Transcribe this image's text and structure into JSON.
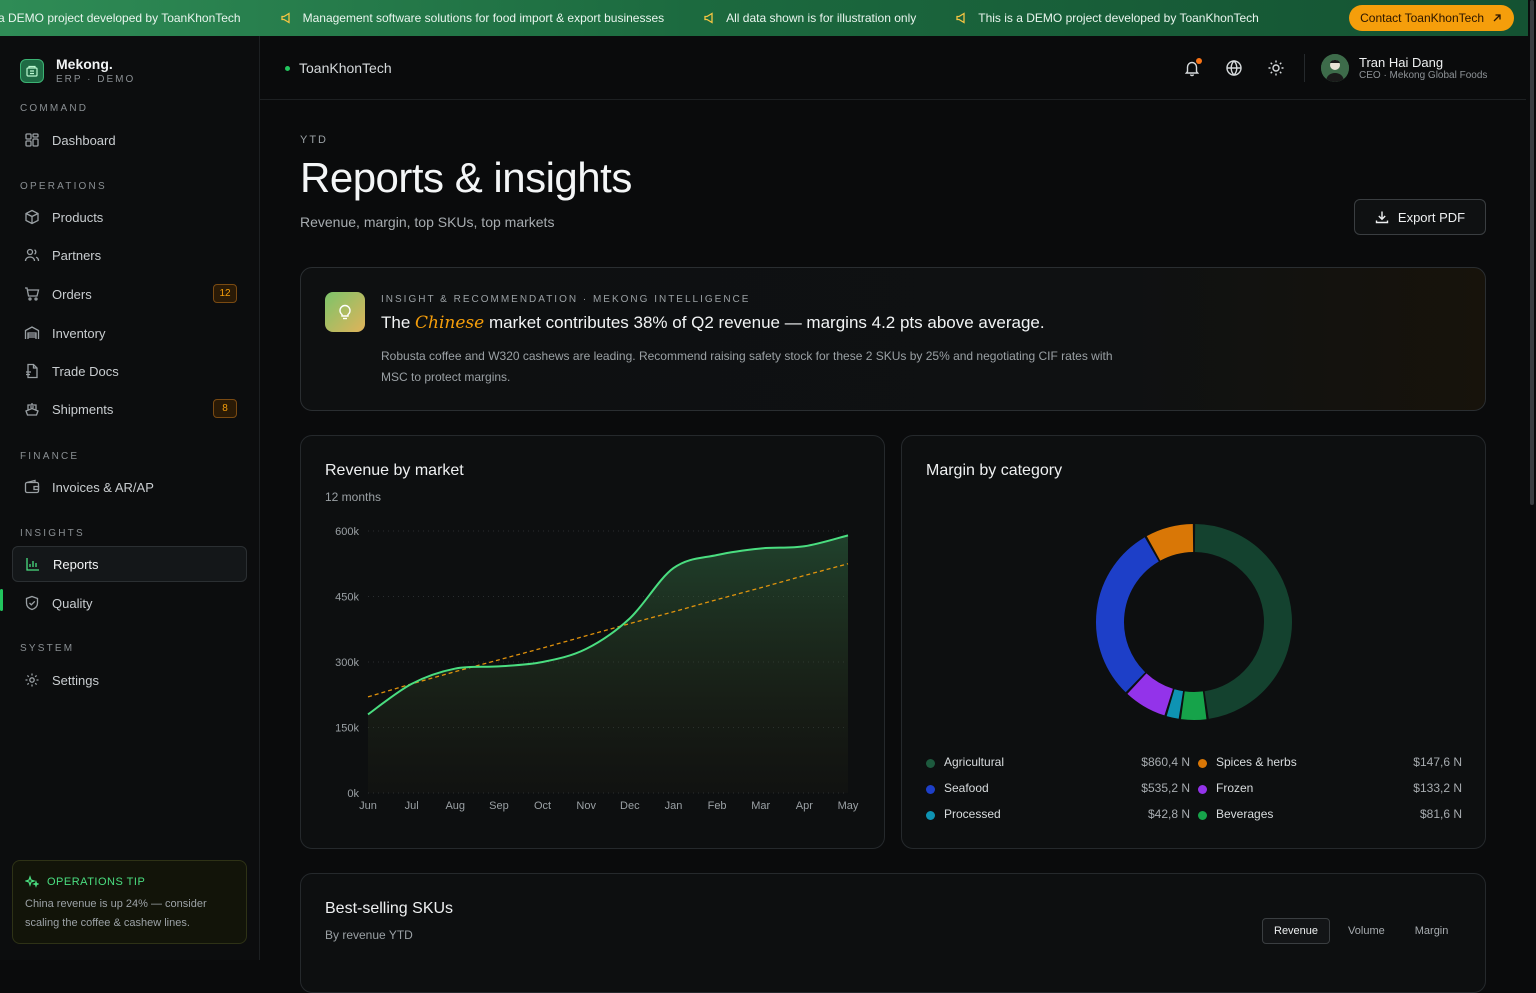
{
  "banner": {
    "messages": [
      "This is a DEMO project developed by ToanKhonTech",
      "Management software solutions for food import & export businesses",
      "All data shown is for illustration only",
      "This is a DEMO project developed by ToanKhonTech"
    ],
    "contact_label": "Contact ToanKhonTech"
  },
  "brand": {
    "name": "Mekong.",
    "sub": "ERP · DEMO"
  },
  "nav": {
    "command": "COMMAND",
    "operations": "OPERATIONS",
    "finance": "FINANCE",
    "insights": "INSIGHTS",
    "system": "SYSTEM",
    "dashboard": "Dashboard",
    "products": "Products",
    "partners": "Partners",
    "orders": "Orders",
    "orders_badge": "12",
    "inventory": "Inventory",
    "trade_docs": "Trade Docs",
    "shipments": "Shipments",
    "shipments_badge": "8",
    "invoices": "Invoices & AR/AP",
    "reports": "Reports",
    "quality": "Quality",
    "settings": "Settings"
  },
  "tip": {
    "title": "OPERATIONS TIP",
    "text": "China revenue is up 24% — consider scaling the coffee & cashew lines."
  },
  "topbar": {
    "breadcrumb": "ToanKhonTech",
    "user_name": "Tran Hai Dang",
    "user_role": "CEO · Mekong Global Foods"
  },
  "page": {
    "eyebrow": "YTD",
    "title": "Reports & insights",
    "subtitle": "Revenue, margin, top SKUs, top markets",
    "export_label": "Export PDF"
  },
  "insight": {
    "eyebrow": "INSIGHT & RECOMMENDATION · MEKONG INTELLIGENCE",
    "head_pre": "The ",
    "head_em": "Chinese",
    "head_post": " market contributes 38% of Q2 revenue — margins 4.2 pts above average.",
    "body": "Robusta coffee and W320 cashews are leading. Recommend raising safety stock for these 2 SKUs by 25% and negotiating CIF rates with MSC to protect margins."
  },
  "revenue_card": {
    "title": "Revenue by market",
    "subtitle": "12 months"
  },
  "margin_card": {
    "title": "Margin by category"
  },
  "sku_card": {
    "title": "Best-selling SKUs",
    "subtitle": "By revenue YTD",
    "tabs": [
      "Revenue",
      "Volume",
      "Margin"
    ]
  },
  "colors": {
    "accent": "#22c55e",
    "warning": "#f59e0b",
    "revenue_line": "#4ade80",
    "trend_line": "#f59e0b"
  },
  "chart_data": [
    {
      "type": "area",
      "title": "Revenue by market",
      "subtitle": "12 months",
      "categories": [
        "Jun",
        "Jul",
        "Aug",
        "Sep",
        "Oct",
        "Nov",
        "Dec",
        "Jan",
        "Feb",
        "Mar",
        "Apr",
        "May"
      ],
      "series": [
        {
          "values": [
            180000,
            250000,
            285000,
            290000,
            300000,
            330000,
            400000,
            515000,
            545000,
            560000,
            565000,
            590000
          ],
          "color": "#4ade80",
          "style": "solid"
        },
        {
          "values": [
            220000,
            250000,
            278000,
            305000,
            332000,
            360000,
            388000,
            415000,
            443000,
            470000,
            498000,
            525000
          ],
          "color": "#f59e0b",
          "style": "dashed"
        }
      ],
      "yticks": [
        "0k",
        "150k",
        "300k",
        "450k",
        "600k"
      ],
      "ylim": [
        0,
        600000
      ],
      "grid": true
    },
    {
      "type": "pie",
      "title": "Margin by category",
      "donut": true,
      "slices": [
        {
          "name": "Agricultural",
          "value": 860.4,
          "label": "$860,4 N",
          "color": "#14422f"
        },
        {
          "name": "Spices & herbs",
          "value": 147.6,
          "label": "$147,6 N",
          "color": "#d97706"
        },
        {
          "name": "Seafood",
          "value": 535.2,
          "label": "$535,2 N",
          "color": "#1d3fc8"
        },
        {
          "name": "Frozen",
          "value": 133.2,
          "label": "$133,2 N",
          "color": "#9333ea"
        },
        {
          "name": "Processed",
          "value": 42.8,
          "label": "$42,8 N",
          "color": "#0e93b3"
        },
        {
          "name": "Beverages",
          "value": 81.6,
          "label": "$81,6 N",
          "color": "#16a34a"
        }
      ]
    }
  ]
}
